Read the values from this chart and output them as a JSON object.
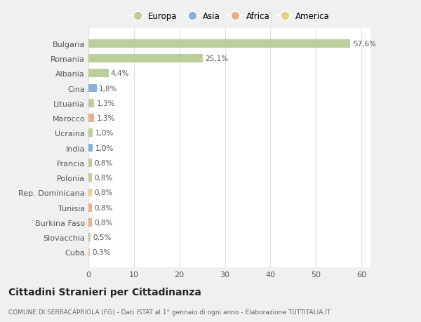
{
  "countries": [
    "Bulgaria",
    "Romania",
    "Albania",
    "Cina",
    "Lituania",
    "Marocco",
    "Ucraina",
    "India",
    "Francia",
    "Polonia",
    "Rep. Dominicana",
    "Tunisia",
    "Burkina Faso",
    "Slovacchia",
    "Cuba"
  ],
  "values": [
    57.6,
    25.1,
    4.4,
    1.8,
    1.3,
    1.3,
    1.0,
    1.0,
    0.8,
    0.8,
    0.8,
    0.8,
    0.8,
    0.5,
    0.3
  ],
  "labels": [
    "57,6%",
    "25,1%",
    "4,4%",
    "1,8%",
    "1,3%",
    "1,3%",
    "1,0%",
    "1,0%",
    "0,8%",
    "0,8%",
    "0,8%",
    "0,8%",
    "0,8%",
    "0,5%",
    "0,3%"
  ],
  "colors": [
    "#b5c98e",
    "#b5c98e",
    "#b5c98e",
    "#7ea8d4",
    "#b5c98e",
    "#e8a87c",
    "#b5c98e",
    "#7ea8d4",
    "#b5c98e",
    "#b5c98e",
    "#e8c97c",
    "#e8a87c",
    "#e8a87c",
    "#b5c98e",
    "#e8c97c"
  ],
  "legend_labels": [
    "Europa",
    "Asia",
    "Africa",
    "America"
  ],
  "legend_colors": [
    "#b5c98e",
    "#7ea8d4",
    "#e8a87c",
    "#e8c97c"
  ],
  "title": "Cittadini Stranieri per Cittadinanza",
  "subtitle": "COMUNE DI SERRACAPRIOLA (FG) - Dati ISTAT al 1° gennaio di ogni anno - Elaborazione TUTTITALIA.IT",
  "xlim": [
    0,
    62
  ],
  "background_color": "#f0f0f0",
  "plot_bg_color": "#ffffff",
  "grid_color": "#e0e0e0",
  "bar_height": 0.55
}
